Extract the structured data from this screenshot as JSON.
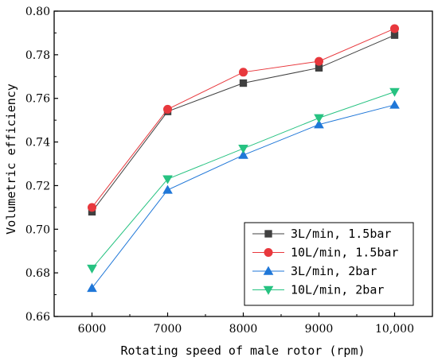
{
  "chart_data": {
    "type": "line",
    "title": "",
    "xlabel": "Rotating speed of male rotor (rpm)",
    "ylabel": "Volumetric efficiency",
    "x": [
      6000,
      7000,
      8000,
      9000,
      10000
    ],
    "x_tick_labels": [
      "6000",
      "7000",
      "8000",
      "9000",
      "10,000"
    ],
    "xlim": [
      5500,
      10500
    ],
    "ylim": [
      0.66,
      0.8
    ],
    "y_ticks": [
      0.66,
      0.68,
      0.7,
      0.72,
      0.74,
      0.76,
      0.78,
      0.8
    ],
    "y_tick_labels": [
      "0.66",
      "0.68",
      "0.70",
      "0.72",
      "0.74",
      "0.76",
      "0.78",
      "0.80"
    ],
    "grid": false,
    "legend_position": "bottom-right",
    "series": [
      {
        "name": "3L/min, 1.5bar",
        "color": "#404040",
        "marker": "square",
        "values": [
          0.708,
          0.754,
          0.767,
          0.774,
          0.789
        ]
      },
      {
        "name": "10L/min, 1.5bar",
        "color": "#e8383d",
        "marker": "circle",
        "values": [
          0.71,
          0.755,
          0.772,
          0.777,
          0.792
        ]
      },
      {
        "name": "3L/min, 2bar",
        "color": "#1f77d8",
        "marker": "triangle-up",
        "values": [
          0.673,
          0.718,
          0.734,
          0.748,
          0.757
        ]
      },
      {
        "name": "10L/min, 2bar",
        "color": "#26c281",
        "marker": "triangle-down",
        "values": [
          0.682,
          0.723,
          0.737,
          0.751,
          0.763
        ]
      }
    ]
  }
}
